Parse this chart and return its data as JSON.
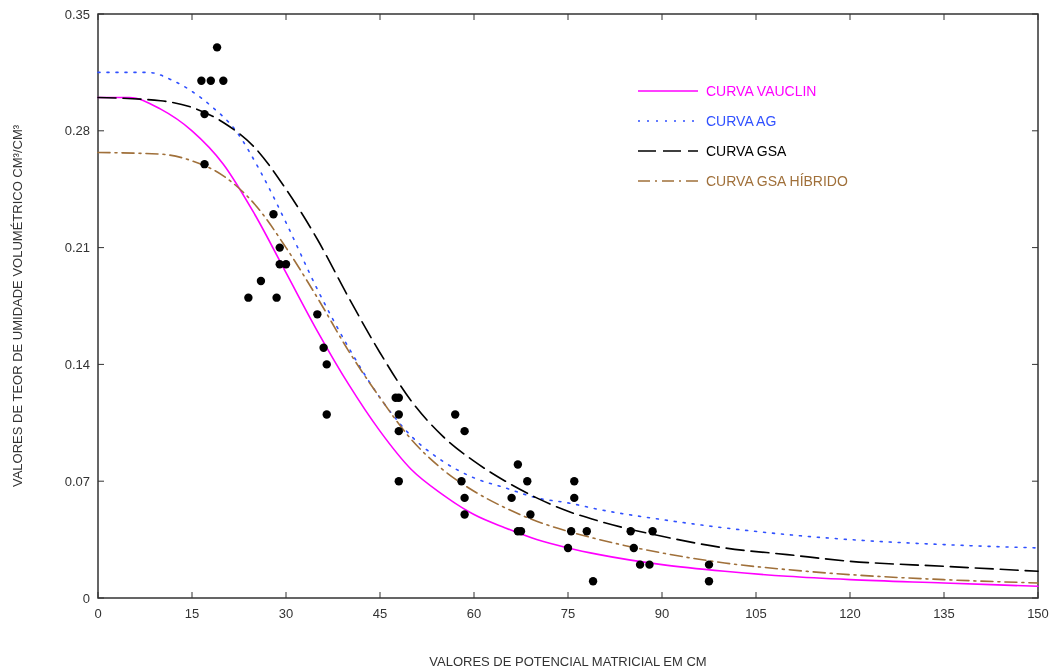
{
  "chart_data": {
    "type": "line",
    "xlabel": "VALORES DE POTENCIAL MATRICIAL EM CM",
    "ylabel": "VALORES DE TEOR DE UMIDADE VOLUMÉTRICO CM³/CM³",
    "xlim": [
      0,
      150
    ],
    "xticks": [
      0,
      15,
      30,
      45,
      60,
      75,
      90,
      105,
      120,
      135,
      150
    ],
    "ylim": [
      0,
      0.35
    ],
    "yticks": [
      0,
      0.07,
      0.14,
      0.21,
      0.28,
      0.35
    ],
    "grid": false,
    "legend": "top right",
    "series": [
      {
        "name": "CURVA VAUCLIN",
        "color": "#ff00ff",
        "line_style": "solid",
        "marker": "none",
        "x": [
          0,
          5,
          10,
          15,
          20,
          25,
          30,
          35,
          40,
          45,
          50,
          55,
          60,
          65,
          70,
          75,
          80,
          90,
          100,
          110,
          120,
          135,
          150
        ],
        "values": [
          0.3,
          0.3,
          0.293,
          0.28,
          0.26,
          0.23,
          0.195,
          0.16,
          0.128,
          0.1,
          0.077,
          0.062,
          0.05,
          0.042,
          0.035,
          0.03,
          0.026,
          0.02,
          0.016,
          0.013,
          0.011,
          0.009,
          0.007
        ]
      },
      {
        "name": "CURVA AG",
        "color": "#3050ff",
        "line_style": "dotted",
        "marker": "none",
        "x": [
          0,
          8,
          12,
          18,
          22,
          26,
          30,
          35,
          40,
          45,
          50,
          55,
          60,
          65,
          70,
          75,
          80,
          90,
          100,
          110,
          120,
          135,
          150
        ],
        "values": [
          0.315,
          0.315,
          0.31,
          0.295,
          0.28,
          0.255,
          0.225,
          0.185,
          0.15,
          0.12,
          0.097,
          0.082,
          0.072,
          0.066,
          0.06,
          0.057,
          0.053,
          0.047,
          0.042,
          0.038,
          0.035,
          0.032,
          0.03
        ]
      },
      {
        "name": "CURVA GSA",
        "color": "#000000",
        "line_style": "dashed",
        "marker": "none",
        "x": [
          0,
          10,
          15,
          20,
          25,
          30,
          35,
          40,
          45,
          50,
          55,
          60,
          65,
          70,
          75,
          80,
          90,
          100,
          110,
          120,
          135,
          150
        ],
        "values": [
          0.3,
          0.298,
          0.294,
          0.285,
          0.27,
          0.245,
          0.215,
          0.18,
          0.147,
          0.118,
          0.097,
          0.082,
          0.07,
          0.06,
          0.052,
          0.046,
          0.037,
          0.03,
          0.026,
          0.022,
          0.019,
          0.016
        ]
      },
      {
        "name": "CURVA GSA HÍBRIDO",
        "color": "#a0703a",
        "line_style": "dashdot",
        "marker": "none",
        "x": [
          0,
          10,
          15,
          20,
          25,
          30,
          35,
          40,
          45,
          50,
          55,
          60,
          65,
          70,
          75,
          80,
          90,
          100,
          110,
          120,
          135,
          150
        ],
        "values": [
          0.267,
          0.266,
          0.262,
          0.253,
          0.236,
          0.21,
          0.18,
          0.148,
          0.12,
          0.095,
          0.077,
          0.064,
          0.054,
          0.046,
          0.04,
          0.035,
          0.027,
          0.021,
          0.017,
          0.014,
          0.011,
          0.009
        ]
      },
      {
        "type": "scatter",
        "color": "#000000",
        "marker": "circle",
        "x": [
          16.5,
          18,
          19,
          20,
          17,
          17,
          24,
          26,
          28,
          28.5,
          29,
          29,
          30,
          35,
          36,
          36.5,
          36.5,
          47.5,
          48,
          48,
          48,
          48,
          57,
          58,
          58.5,
          58.5,
          58.5,
          66,
          67,
          67,
          67.5,
          68.5,
          69,
          75,
          75.5,
          76,
          76,
          78,
          79,
          85,
          85.5,
          86.5,
          88,
          88.5,
          97.5,
          97.5
        ],
        "values": [
          0.31,
          0.31,
          0.33,
          0.31,
          0.29,
          0.26,
          0.18,
          0.19,
          0.23,
          0.18,
          0.21,
          0.2,
          0.2,
          0.17,
          0.15,
          0.14,
          0.11,
          0.12,
          0.12,
          0.11,
          0.1,
          0.07,
          0.11,
          0.07,
          0.1,
          0.06,
          0.05,
          0.06,
          0.08,
          0.04,
          0.04,
          0.07,
          0.05,
          0.03,
          0.04,
          0.07,
          0.06,
          0.04,
          0.01,
          0.04,
          0.03,
          0.02,
          0.02,
          0.04,
          0.02,
          0.01
        ]
      }
    ]
  }
}
